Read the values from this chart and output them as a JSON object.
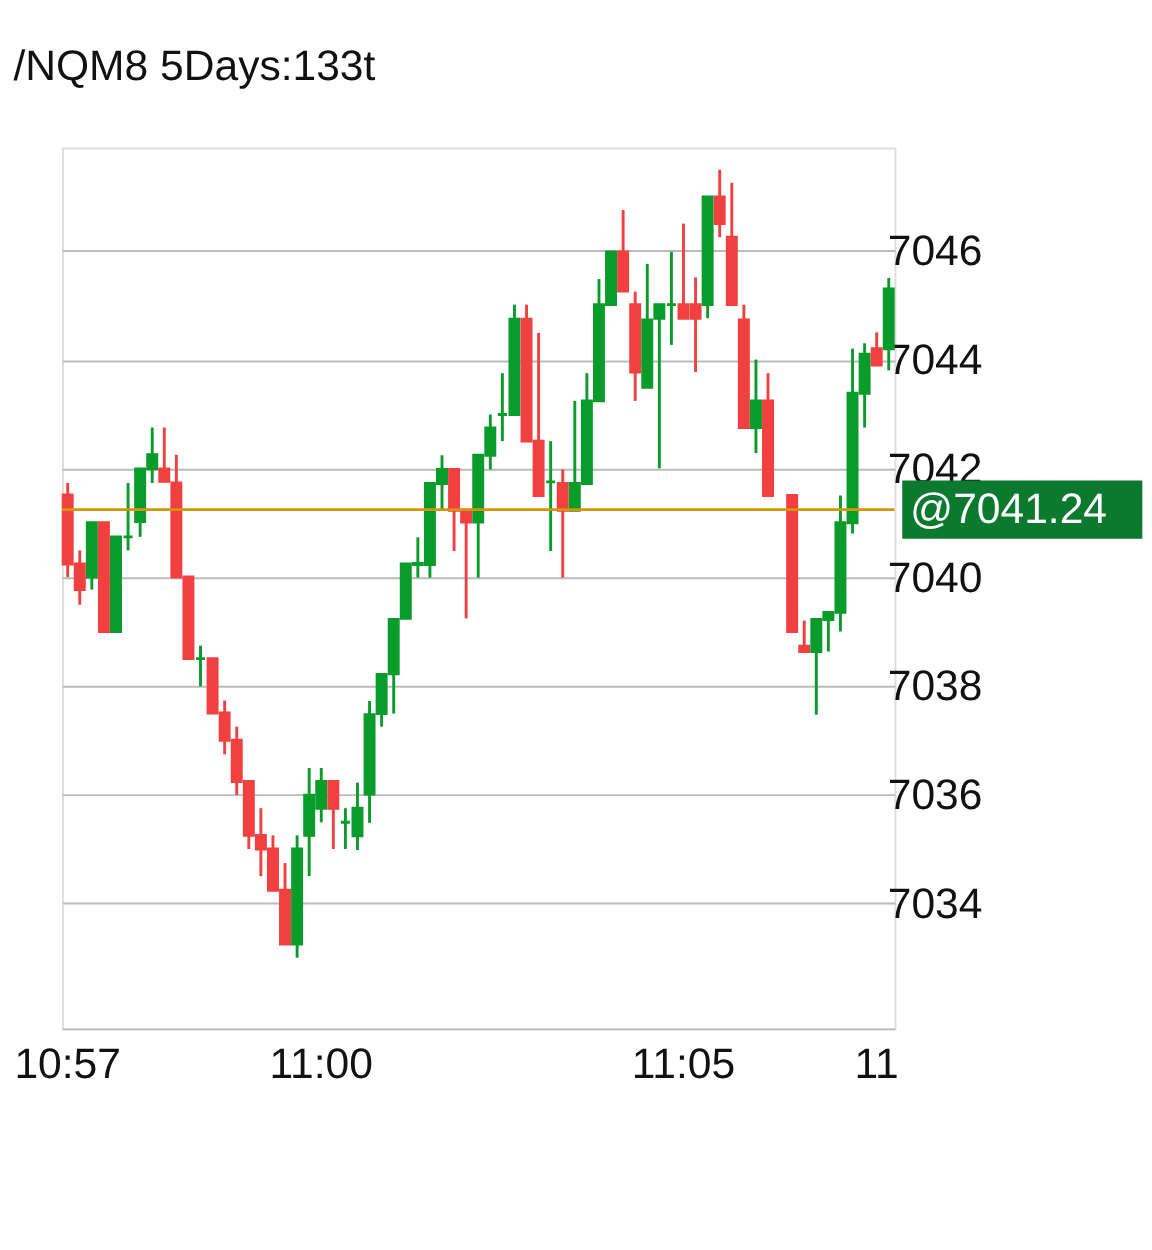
{
  "chart_data": {
    "type": "candlestick",
    "title": "/NQM8 5Days:133t",
    "categories": [
      "10:57",
      null,
      null,
      null,
      null,
      null,
      null,
      null,
      null,
      null,
      null,
      null,
      null,
      null,
      null,
      null,
      null,
      null,
      null,
      null,
      null,
      "11:00",
      null,
      null,
      null,
      null,
      null,
      null,
      null,
      null,
      null,
      null,
      null,
      null,
      null,
      null,
      null,
      null,
      null,
      null,
      null,
      null,
      null,
      null,
      null,
      null,
      null,
      null,
      null,
      null,
      null,
      "11:05",
      null,
      null,
      null,
      null,
      null,
      null,
      null,
      null,
      null,
      null,
      null,
      null,
      null,
      null,
      null,
      "11",
      null
    ],
    "ohlc": [
      [
        7041.51,
        7041.73,
        7040.0,
        7040.24
      ],
      [
        7040.24,
        7040.49,
        7039.49,
        7039.77
      ],
      [
        7040.0,
        7041.0,
        7039.77,
        7041.0
      ],
      [
        7041.0,
        7041.0,
        7039.0,
        7039.0
      ],
      [
        7039.0,
        7040.74,
        7039.0,
        7040.74
      ],
      [
        7040.74,
        7041.73,
        7040.49,
        7040.74
      ],
      [
        7041.02,
        7041.99,
        7040.74,
        7041.99
      ],
      [
        7041.99,
        7042.75,
        7041.73,
        7042.25
      ],
      [
        7041.99,
        7042.75,
        7041.76,
        7041.76
      ],
      [
        7041.73,
        7042.25,
        7040.0,
        7040.0
      ],
      [
        7040.0,
        7040.0,
        7038.5,
        7038.5
      ],
      [
        7038.5,
        7038.74,
        7037.99,
        7038.5
      ],
      [
        7038.5,
        7038.5,
        7037.5,
        7037.5
      ],
      [
        7037.5,
        7037.73,
        7036.74,
        7037.0
      ],
      [
        7037.0,
        7037.25,
        7035.99,
        7036.24
      ],
      [
        7036.24,
        7036.24,
        7035.0,
        7035.25
      ],
      [
        7035.25,
        7035.75,
        7034.5,
        7035.0
      ],
      [
        7035.0,
        7035.25,
        7034.24,
        7034.24
      ],
      [
        7034.24,
        7034.74,
        7033.25,
        7033.25
      ],
      [
        7033.25,
        7035.25,
        7033.0,
        7035.0
      ],
      [
        7035.25,
        7036.49,
        7034.5,
        7035.99
      ],
      [
        7035.75,
        7036.49,
        7035.49,
        7036.24
      ],
      [
        7036.24,
        7036.24,
        7035.0,
        7035.75
      ],
      [
        7035.49,
        7035.75,
        7035.0,
        7035.49
      ],
      [
        7035.24,
        7036.22,
        7034.98,
        7035.75
      ],
      [
        7036.01,
        7037.72,
        7035.48,
        7037.47
      ],
      [
        7037.49,
        7038.21,
        7037.25,
        7038.21
      ],
      [
        7038.22,
        7039.22,
        7037.49,
        7039.22
      ],
      [
        7039.24,
        7040.24,
        7039.24,
        7040.24
      ],
      [
        7040.23,
        7040.73,
        7039.99,
        7040.25
      ],
      [
        7040.23,
        7041.72,
        7039.99,
        7041.72
      ],
      [
        7041.72,
        7042.24,
        7041.23,
        7041.98
      ],
      [
        7041.98,
        7041.98,
        7040.48,
        7041.23
      ],
      [
        7041.23,
        7041.23,
        7039.24,
        7041.01
      ],
      [
        7041.01,
        7042.24,
        7039.99,
        7042.24
      ],
      [
        7042.24,
        7042.99,
        7041.98,
        7042.74
      ],
      [
        7042.99,
        7043.75,
        7042.5,
        7042.99
      ],
      [
        7042.99,
        7045.01,
        7042.99,
        7044.74
      ],
      [
        7044.74,
        7045.01,
        7042.5,
        7042.5
      ],
      [
        7042.5,
        7044.49,
        7041.5,
        7041.5
      ],
      [
        7041.75,
        7042.5,
        7040.48,
        7041.75
      ],
      [
        7041.72,
        7041.98,
        7039.99,
        7041.23
      ],
      [
        7041.23,
        7043.24,
        7041.23,
        7041.72
      ],
      [
        7041.72,
        7043.75,
        7041.72,
        7043.24
      ],
      [
        7043.24,
        7045.48,
        7043.24,
        7045.01
      ],
      [
        7045.01,
        7045.98,
        7045.01,
        7045.98
      ],
      [
        7045.98,
        7046.75,
        7045.26,
        7045.26
      ],
      [
        7045.01,
        7045.25,
        7043.24,
        7043.77
      ],
      [
        7043.49,
        7045.76,
        7043.49,
        7044.73
      ],
      [
        7044.76,
        7045.01,
        7042.0,
        7045.01
      ],
      [
        7045.01,
        7045.98,
        7044.27,
        7045.01
      ],
      [
        7045.01,
        7046.5,
        7044.76,
        7044.76
      ],
      [
        7045.01,
        7045.51,
        7043.77,
        7044.76
      ],
      [
        7045.01,
        7046.99,
        7044.76,
        7046.99
      ],
      [
        7046.99,
        7047.49,
        7046.25,
        7046.5
      ],
      [
        7046.25,
        7047.25,
        7045.01,
        7045.01
      ],
      [
        7044.73,
        7045.01,
        7042.75,
        7042.75
      ],
      [
        7042.75,
        7044.0,
        7042.28,
        7043.24
      ],
      [
        7043.24,
        7043.75,
        7041.5,
        7041.5
      ],
      null,
      [
        7041.5,
        7041.5,
        7039.0,
        7039.0
      ],
      [
        7038.73,
        7039.2,
        7038.63,
        7038.63
      ],
      [
        7038.63,
        7039.22,
        7037.47,
        7039.22
      ],
      [
        7039.22,
        7039.35,
        7038.63,
        7039.35
      ],
      [
        7039.35,
        7041.5,
        7039.0,
        7041.0
      ],
      [
        7041.0,
        7044.2,
        7040.8,
        7043.38
      ],
      [
        7043.38,
        7044.3,
        7042.75,
        7044.1
      ],
      [
        7044.2,
        7044.5,
        7043.9,
        7043.9
      ],
      [
        7044.2,
        7045.5,
        7043.8,
        7045.3
      ]
    ],
    "colors": [
      "#f04040",
      "#f04040",
      "#0a9c2a",
      "#f04040",
      "#0a9c2a",
      "#0a9c2a",
      "#0a9c2a",
      "#0a9c2a",
      "#f04040",
      "#f04040",
      "#f04040",
      "#0a9c2a",
      "#f04040",
      "#f04040",
      "#f04040",
      "#f04040",
      "#f04040",
      "#f04040",
      "#f04040",
      "#0a9c2a",
      "#0a9c2a",
      "#0a9c2a",
      "#f04040",
      "#0a9c2a",
      "#0a9c2a",
      "#0a9c2a",
      "#0a9c2a",
      "#0a9c2a",
      "#0a9c2a",
      "#0a9c2a",
      "#0a9c2a",
      "#0a9c2a",
      "#f04040",
      "#f04040",
      "#0a9c2a",
      "#0a9c2a",
      "#0a9c2a",
      "#0a9c2a",
      "#f04040",
      "#f04040",
      "#0a9c2a",
      "#f04040",
      "#0a9c2a",
      "#0a9c2a",
      "#0a9c2a",
      "#0a9c2a",
      "#f04040",
      "#f04040",
      "#0a9c2a",
      "#0a9c2a",
      "#0a9c2a",
      "#f04040",
      "#f04040",
      "#0a9c2a",
      "#f04040",
      "#f04040",
      "#f04040",
      "#0a9c2a",
      "#f04040",
      null,
      "#f04040",
      "#f04040",
      "#0a9c2a",
      "#0a9c2a",
      "#0a9c2a",
      "#0a9c2a",
      "#0a9c2a",
      "#f04040",
      "#0a9c2a"
    ],
    "ylim": [
      7031.7,
      7047.9
    ],
    "yticks": [
      7034,
      7036,
      7038,
      7040,
      7042,
      7044,
      7046
    ],
    "grid": "y",
    "ref_lines": [
      {
        "axis": "y",
        "value": 7041.24,
        "label": "@7041.24",
        "color": "#d4950a"
      }
    ]
  }
}
